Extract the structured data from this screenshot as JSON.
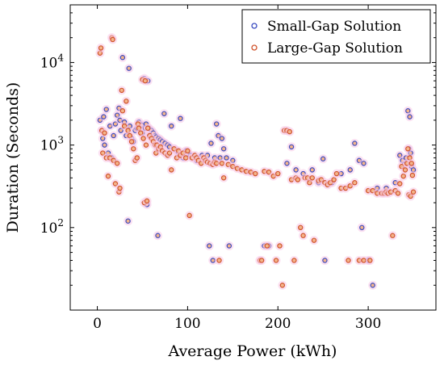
{
  "chart_data": {
    "type": "scatter",
    "xlabel": "Average Power (kWh)",
    "ylabel": "Duration (Seconds)",
    "xlim": [
      -30,
      375
    ],
    "ylim": [
      10,
      50000
    ],
    "y_scale": "log",
    "grid": false,
    "legend_position": "top-right",
    "x_ticks": [
      0,
      100,
      200,
      300
    ],
    "y_ticks": [
      {
        "value": 100,
        "label": "10^2"
      },
      {
        "value": 1000,
        "label": "10^3"
      },
      {
        "value": 10000,
        "label": "10^4"
      }
    ],
    "series": [
      {
        "name": "Small-Gap Solution",
        "marker_color": "#3b4cc0",
        "points": [
          [
            3,
            2000
          ],
          [
            5,
            1500
          ],
          [
            6,
            1200
          ],
          [
            7,
            2200
          ],
          [
            8,
            1000
          ],
          [
            10,
            2700
          ],
          [
            12,
            800
          ],
          [
            14,
            1700
          ],
          [
            16,
            700
          ],
          [
            18,
            1300
          ],
          [
            20,
            1800
          ],
          [
            22,
            2300
          ],
          [
            24,
            2800
          ],
          [
            25,
            2000
          ],
          [
            26,
            1500
          ],
          [
            28,
            11500
          ],
          [
            30,
            1900
          ],
          [
            32,
            1300
          ],
          [
            34,
            120
          ],
          [
            35,
            8500
          ],
          [
            36,
            1700
          ],
          [
            38,
            1200
          ],
          [
            40,
            1100
          ],
          [
            42,
            1500
          ],
          [
            44,
            1600
          ],
          [
            46,
            1900
          ],
          [
            47,
            1700
          ],
          [
            49,
            1750
          ],
          [
            50,
            1400
          ],
          [
            52,
            6400
          ],
          [
            53,
            1600
          ],
          [
            54,
            1800
          ],
          [
            55,
            190
          ],
          [
            56,
            6000
          ],
          [
            57,
            1600
          ],
          [
            58,
            1300
          ],
          [
            60,
            1500
          ],
          [
            62,
            1400
          ],
          [
            64,
            1300
          ],
          [
            65,
            1250
          ],
          [
            67,
            80
          ],
          [
            68,
            1200
          ],
          [
            70,
            1150
          ],
          [
            72,
            1100
          ],
          [
            74,
            2400
          ],
          [
            75,
            1050
          ],
          [
            78,
            1000
          ],
          [
            80,
            950
          ],
          [
            82,
            1700
          ],
          [
            85,
            900
          ],
          [
            88,
            850
          ],
          [
            90,
            800
          ],
          [
            92,
            2100
          ],
          [
            95,
            700
          ],
          [
            98,
            850
          ],
          [
            100,
            800
          ],
          [
            103,
            750
          ],
          [
            106,
            700
          ],
          [
            110,
            650
          ],
          [
            113,
            700
          ],
          [
            116,
            750
          ],
          [
            120,
            700
          ],
          [
            122,
            750
          ],
          [
            124,
            60
          ],
          [
            126,
            1050
          ],
          [
            128,
            40
          ],
          [
            130,
            700
          ],
          [
            132,
            1800
          ],
          [
            134,
            1300
          ],
          [
            136,
            700
          ],
          [
            138,
            1200
          ],
          [
            140,
            900
          ],
          [
            143,
            700
          ],
          [
            146,
            60
          ],
          [
            150,
            650
          ],
          [
            185,
            60
          ],
          [
            190,
            60
          ],
          [
            210,
            600
          ],
          [
            215,
            950
          ],
          [
            220,
            500
          ],
          [
            228,
            450
          ],
          [
            238,
            500
          ],
          [
            245,
            350
          ],
          [
            250,
            680
          ],
          [
            252,
            40
          ],
          [
            260,
            350
          ],
          [
            270,
            450
          ],
          [
            280,
            500
          ],
          [
            285,
            1050
          ],
          [
            290,
            650
          ],
          [
            293,
            100
          ],
          [
            295,
            600
          ],
          [
            300,
            40
          ],
          [
            305,
            20
          ],
          [
            310,
            300
          ],
          [
            320,
            300
          ],
          [
            330,
            350
          ],
          [
            335,
            750
          ],
          [
            338,
            650
          ],
          [
            340,
            580
          ],
          [
            342,
            700
          ],
          [
            344,
            2600
          ],
          [
            345,
            900
          ],
          [
            346,
            2200
          ],
          [
            347,
            800
          ],
          [
            348,
            550
          ],
          [
            350,
            500
          ]
        ]
      },
      {
        "name": "Large-Gap Solution",
        "marker_color": "#d0532c",
        "points": [
          [
            3,
            13000
          ],
          [
            4,
            15000
          ],
          [
            5,
            1500
          ],
          [
            6,
            800
          ],
          [
            8,
            1400
          ],
          [
            10,
            700
          ],
          [
            12,
            420
          ],
          [
            14,
            700
          ],
          [
            16,
            20000
          ],
          [
            17,
            19000
          ],
          [
            18,
            650
          ],
          [
            20,
            340
          ],
          [
            22,
            600
          ],
          [
            24,
            270
          ],
          [
            25,
            300
          ],
          [
            27,
            4600
          ],
          [
            28,
            2600
          ],
          [
            30,
            1700
          ],
          [
            32,
            3400
          ],
          [
            34,
            1500
          ],
          [
            36,
            1300
          ],
          [
            38,
            1100
          ],
          [
            40,
            900
          ],
          [
            42,
            650
          ],
          [
            44,
            700
          ],
          [
            45,
            1800
          ],
          [
            46,
            1600
          ],
          [
            48,
            1400
          ],
          [
            50,
            6200
          ],
          [
            51,
            1200
          ],
          [
            52,
            200
          ],
          [
            53,
            6000
          ],
          [
            54,
            1000
          ],
          [
            55,
            210
          ],
          [
            56,
            1600
          ],
          [
            58,
            1300
          ],
          [
            60,
            1200
          ],
          [
            62,
            1100
          ],
          [
            64,
            1000
          ],
          [
            65,
            800
          ],
          [
            66,
            1000
          ],
          [
            68,
            900
          ],
          [
            70,
            950
          ],
          [
            72,
            850
          ],
          [
            75,
            800
          ],
          [
            78,
            750
          ],
          [
            80,
            800
          ],
          [
            82,
            500
          ],
          [
            85,
            900
          ],
          [
            88,
            700
          ],
          [
            90,
            850
          ],
          [
            92,
            750
          ],
          [
            95,
            800
          ],
          [
            98,
            700
          ],
          [
            100,
            850
          ],
          [
            102,
            140
          ],
          [
            105,
            700
          ],
          [
            108,
            750
          ],
          [
            110,
            700
          ],
          [
            112,
            650
          ],
          [
            115,
            600
          ],
          [
            118,
            700
          ],
          [
            120,
            650
          ],
          [
            122,
            620
          ],
          [
            125,
            600
          ],
          [
            128,
            580
          ],
          [
            130,
            620
          ],
          [
            132,
            600
          ],
          [
            135,
            40
          ],
          [
            138,
            600
          ],
          [
            140,
            400
          ],
          [
            145,
            580
          ],
          [
            150,
            550
          ],
          [
            155,
            520
          ],
          [
            160,
            500
          ],
          [
            165,
            480
          ],
          [
            170,
            470
          ],
          [
            175,
            450
          ],
          [
            180,
            40
          ],
          [
            182,
            40
          ],
          [
            185,
            480
          ],
          [
            188,
            60
          ],
          [
            190,
            470
          ],
          [
            195,
            420
          ],
          [
            198,
            40
          ],
          [
            200,
            450
          ],
          [
            202,
            60
          ],
          [
            205,
            20
          ],
          [
            207,
            1500
          ],
          [
            210,
            1500
          ],
          [
            213,
            1450
          ],
          [
            215,
            380
          ],
          [
            218,
            40
          ],
          [
            220,
            400
          ],
          [
            222,
            380
          ],
          [
            225,
            100
          ],
          [
            228,
            80
          ],
          [
            230,
            400
          ],
          [
            233,
            400
          ],
          [
            235,
            350
          ],
          [
            238,
            400
          ],
          [
            240,
            70
          ],
          [
            245,
            370
          ],
          [
            248,
            380
          ],
          [
            252,
            350
          ],
          [
            255,
            330
          ],
          [
            258,
            350
          ],
          [
            262,
            380
          ],
          [
            265,
            450
          ],
          [
            270,
            300
          ],
          [
            275,
            300
          ],
          [
            278,
            40
          ],
          [
            280,
            320
          ],
          [
            285,
            350
          ],
          [
            290,
            40
          ],
          [
            295,
            40
          ],
          [
            300,
            280
          ],
          [
            302,
            40
          ],
          [
            305,
            280
          ],
          [
            310,
            260
          ],
          [
            315,
            260
          ],
          [
            318,
            260
          ],
          [
            320,
            270
          ],
          [
            322,
            260
          ],
          [
            325,
            270
          ],
          [
            327,
            80
          ],
          [
            330,
            280
          ],
          [
            333,
            260
          ],
          [
            335,
            340
          ],
          [
            337,
            550
          ],
          [
            339,
            420
          ],
          [
            341,
            500
          ],
          [
            343,
            600
          ],
          [
            344,
            900
          ],
          [
            345,
            250
          ],
          [
            346,
            700
          ],
          [
            347,
            240
          ],
          [
            348,
            600
          ],
          [
            349,
            430
          ],
          [
            350,
            270
          ]
        ]
      }
    ]
  }
}
